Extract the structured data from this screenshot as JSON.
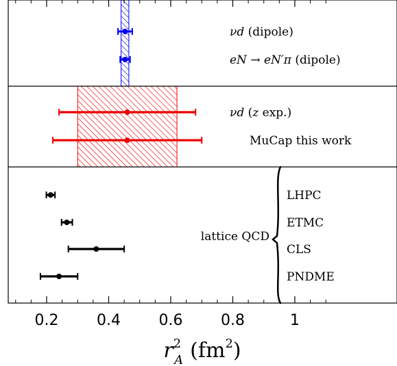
{
  "chart_data": {
    "type": "scatter",
    "subtype": "forest-plot-horizontal-error-bars",
    "title": "",
    "xlabel": "r_A^2 (fm^2)",
    "xlabel_parts": {
      "symbol": "r",
      "sup": "2",
      "sub": "A",
      "unit": "(fm",
      "unit_sup": "2",
      "unit_close": ")"
    },
    "xlim": [
      0.1,
      1.1
    ],
    "xticks": [
      0.2,
      0.4,
      0.6,
      0.8,
      1.0
    ],
    "xtick_labels": [
      "0.2",
      "0.4",
      "0.6",
      "0.8",
      "1"
    ],
    "grid": false,
    "groups": [
      {
        "name": "dipole",
        "color": "#0000ee",
        "band": {
          "lo": 0.44,
          "hi": 0.465,
          "pattern": "hatch"
        },
        "points": [
          {
            "label_html": "<tspan font-style='italic'>νd</tspan> (dipole)",
            "value": 0.453,
            "lo": 0.43,
            "hi": 0.476
          },
          {
            "label_html": "<tspan font-style='italic'>eN</tspan> → <tspan font-style='italic'>eN′π</tspan> (dipole)",
            "value": 0.453,
            "lo": 0.437,
            "hi": 0.469
          }
        ]
      },
      {
        "name": "z-expansion",
        "color": "#ee0000",
        "band": {
          "lo": 0.3,
          "hi": 0.62,
          "pattern": "hatch"
        },
        "points": [
          {
            "label_html": "<tspan font-style='italic'>νd</tspan> (<tspan font-style='italic'>z</tspan> exp.)",
            "value": 0.46,
            "lo": 0.24,
            "hi": 0.68
          },
          {
            "label_html": "MuCap  this work",
            "value": 0.46,
            "lo": 0.22,
            "hi": 0.7
          }
        ]
      },
      {
        "name": "lattice",
        "color": "#000000",
        "group_label": "lattice QCD",
        "points": [
          {
            "label": "LHPC",
            "value": 0.213,
            "lo": 0.199,
            "hi": 0.227
          },
          {
            "label": "ETMC",
            "value": 0.265,
            "lo": 0.248,
            "hi": 0.283
          },
          {
            "label": "CLS",
            "value": 0.36,
            "lo": 0.27,
            "hi": 0.45
          },
          {
            "label": "PNDME",
            "value": 0.24,
            "lo": 0.18,
            "hi": 0.3
          }
        ]
      }
    ]
  }
}
